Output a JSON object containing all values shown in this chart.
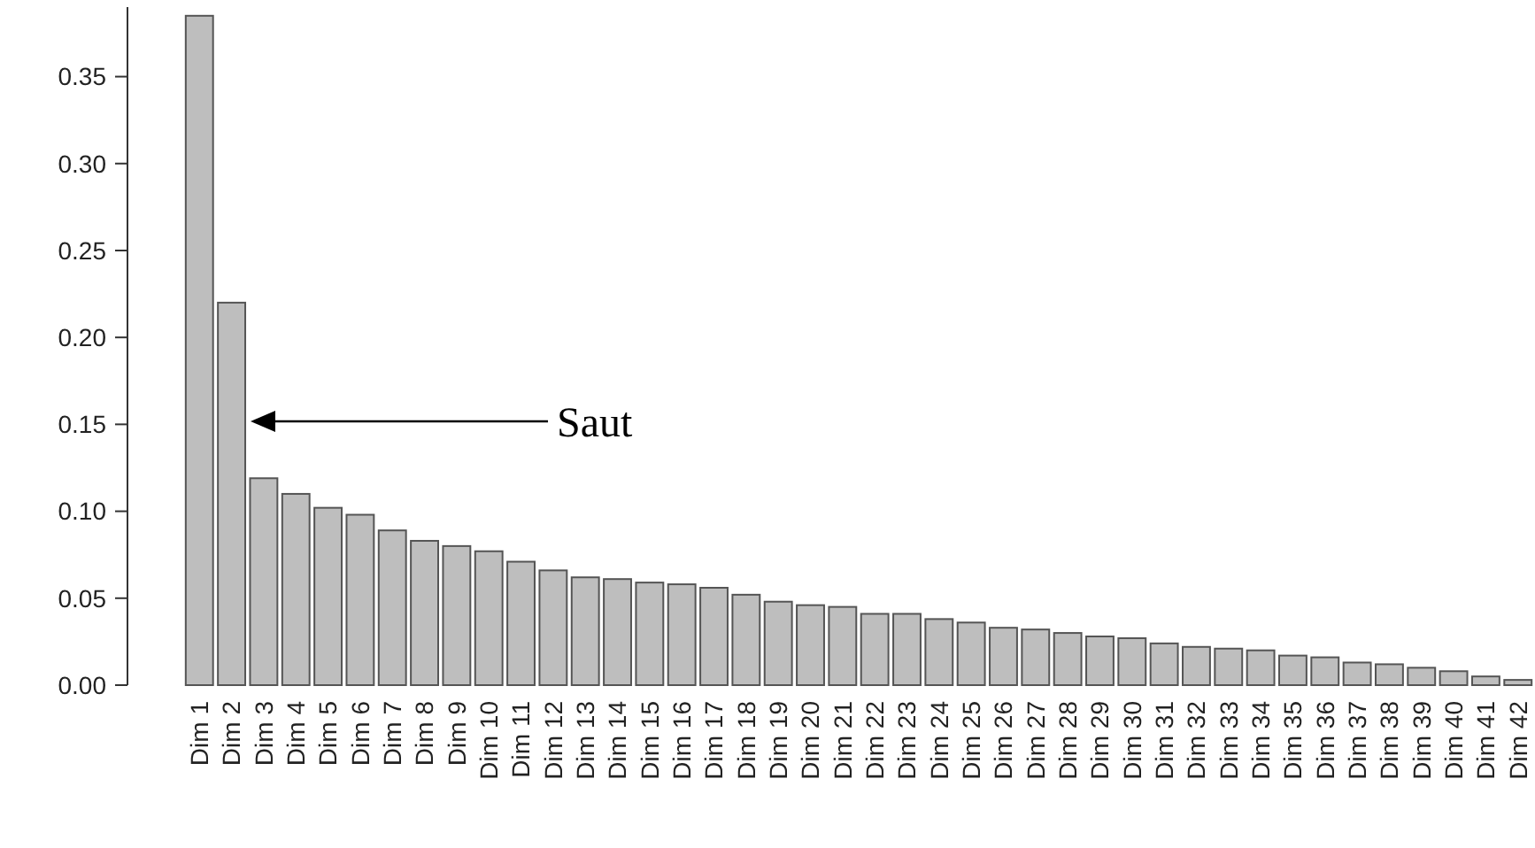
{
  "chart_data": {
    "type": "bar",
    "categories": [
      "Dim 1",
      "Dim 2",
      "Dim 3",
      "Dim 4",
      "Dim 5",
      "Dim 6",
      "Dim 7",
      "Dim 8",
      "Dim 9",
      "Dim 10",
      "Dim 11",
      "Dim 12",
      "Dim 13",
      "Dim 14",
      "Dim 15",
      "Dim 16",
      "Dim 17",
      "Dim 18",
      "Dim 19",
      "Dim 20",
      "Dim 21",
      "Dim 22",
      "Dim 23",
      "Dim 24",
      "Dim 25",
      "Dim 26",
      "Dim 27",
      "Dim 28",
      "Dim 29",
      "Dim 30",
      "Dim 31",
      "Dim 32",
      "Dim 33",
      "Dim 34",
      "Dim 35",
      "Dim 36",
      "Dim 37",
      "Dim 38",
      "Dim 39",
      "Dim 40",
      "Dim 41",
      "Dim 42"
    ],
    "values": [
      0.385,
      0.22,
      0.119,
      0.11,
      0.102,
      0.098,
      0.089,
      0.083,
      0.08,
      0.077,
      0.071,
      0.066,
      0.062,
      0.061,
      0.059,
      0.058,
      0.056,
      0.052,
      0.048,
      0.046,
      0.045,
      0.041,
      0.041,
      0.038,
      0.036,
      0.033,
      0.032,
      0.03,
      0.028,
      0.027,
      0.024,
      0.022,
      0.021,
      0.02,
      0.017,
      0.016,
      0.013,
      0.012,
      0.01,
      0.008,
      0.005,
      0.003
    ],
    "color": "#bebebe",
    "ylim": [
      0,
      0.39
    ],
    "yticks": [
      {
        "value": 0,
        "label": "0.00"
      },
      {
        "value": 0.05,
        "label": "0.05"
      },
      {
        "value": 0.1,
        "label": "0.10"
      },
      {
        "value": 0.15,
        "label": "0.15"
      },
      {
        "value": 0.2,
        "label": "0.20"
      },
      {
        "value": 0.25,
        "label": "0.25"
      },
      {
        "value": 0.3,
        "label": "0.30"
      },
      {
        "value": 0.35,
        "label": "0.35"
      }
    ],
    "annotations": [
      "Saut"
    ],
    "grid": false
  }
}
